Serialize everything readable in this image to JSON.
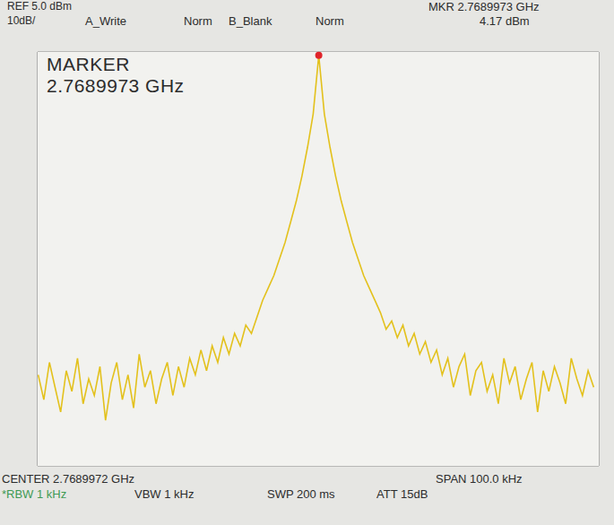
{
  "chart_data": {
    "type": "line",
    "annotations": [
      "REF 5.0 dBm",
      "10dB/",
      "A_Write",
      "Norm",
      "B_Blank",
      "Norm",
      "MKR 2.7689973 GHz",
      "4.17 dBm",
      "MARKER",
      "2.7689973 GHz",
      "CENTER 2.7689972 GHz",
      "SPAN 100.0 kHz",
      "*RBW 1 kHz",
      "VBW 1 kHz",
      "SWP 200 ms",
      "ATT 15dB"
    ],
    "x": [
      2.7689473,
      2.7689483,
      2.7689493,
      2.7689503,
      2.7689513,
      2.7689523,
      2.7689533,
      2.7689543,
      2.7689553,
      2.7689563,
      2.7689573,
      2.7689583,
      2.7689593,
      2.7689603,
      2.7689613,
      2.7689623,
      2.7689633,
      2.7689643,
      2.7689653,
      2.7689663,
      2.7689673,
      2.7689683,
      2.7689693,
      2.7689703,
      2.7689713,
      2.7689723,
      2.7689733,
      2.7689743,
      2.7689753,
      2.7689763,
      2.7689773,
      2.7689783,
      2.7689793,
      2.7689803,
      2.7689813,
      2.7689823,
      2.7689833,
      2.7689843,
      2.7689853,
      2.7689863,
      2.7689873,
      2.7689883,
      2.7689893,
      2.7689903,
      2.7689913,
      2.7689923,
      2.7689933,
      2.7689943,
      2.7689953,
      2.7689963,
      2.7689973,
      2.7689983,
      2.7689993,
      2.7690003,
      2.7690013,
      2.7690023,
      2.7690033,
      2.7690043,
      2.7690053,
      2.7690063,
      2.7690073,
      2.7690083,
      2.7690093,
      2.7690103,
      2.7690113,
      2.7690123,
      2.7690133,
      2.7690143,
      2.7690153,
      2.7690163,
      2.7690173,
      2.7690183,
      2.7690193,
      2.7690203,
      2.7690213,
      2.7690223,
      2.7690233,
      2.7690243,
      2.7690253,
      2.7690263,
      2.7690273,
      2.7690283,
      2.7690293,
      2.7690303,
      2.7690313,
      2.7690323,
      2.7690333,
      2.7690343,
      2.7690353,
      2.7690363,
      2.7690373,
      2.7690383,
      2.7690393,
      2.7690403,
      2.7690413,
      2.7690423,
      2.7690433,
      2.7690443,
      2.7690453,
      2.7690463
    ],
    "values": [
      -73,
      -79,
      -70,
      -76,
      -82,
      -72,
      -77,
      -69,
      -80,
      -74,
      -78,
      -71,
      -84,
      -75,
      -70,
      -79,
      -73,
      -81,
      -68,
      -76,
      -72,
      -80,
      -74,
      -70,
      -78,
      -71,
      -76,
      -69,
      -73,
      -67,
      -72,
      -66,
      -70,
      -64,
      -68,
      -63,
      -66,
      -61,
      -63,
      -59,
      -55,
      -52,
      -49,
      -45,
      -41,
      -36,
      -31,
      -25,
      -18,
      -10,
      4.17,
      -10,
      -18,
      -25,
      -31,
      -36,
      -41,
      -45,
      -49,
      -52,
      -55,
      -58,
      -62,
      -60,
      -64,
      -61,
      -66,
      -63,
      -68,
      -65,
      -70,
      -67,
      -73,
      -69,
      -76,
      -71,
      -68,
      -78,
      -72,
      -70,
      -77,
      -73,
      -80,
      -69,
      -75,
      -71,
      -79,
      -74,
      -70,
      -82,
      -72,
      -77,
      -71,
      -75,
      -80,
      -69,
      -74,
      -78,
      -72,
      -76
    ],
    "color": "#e3c11c",
    "xlim": [
      2.7689472,
      2.7690472
    ],
    "xticks": [
      2.7689472,
      2.7689572,
      2.7689672,
      2.7689772,
      2.7689872,
      2.7689972,
      2.7690072,
      2.7690172,
      2.7690272,
      2.7690372,
      2.7690472
    ],
    "ylim": [
      -95,
      5
    ],
    "yticks": [
      -95,
      -85,
      -75,
      -65,
      -55,
      -45,
      -35,
      -25,
      -15,
      -5,
      5
    ],
    "grid": true,
    "tick_labels": false
  }
}
